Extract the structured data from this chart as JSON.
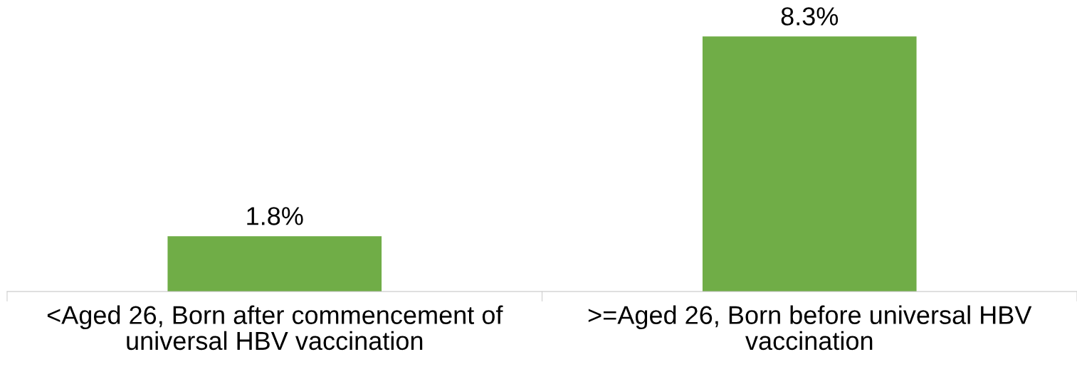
{
  "chart_data": {
    "type": "bar",
    "categories": [
      "<Aged 26, Born after commencement of universal HBV vaccination",
      ">=Aged 26, Born before universal HBV vaccination"
    ],
    "values": [
      1.8,
      8.3
    ],
    "color": "#70ad47",
    "value_labels": [
      "1.8%",
      "8.3%"
    ],
    "grid": false
  }
}
